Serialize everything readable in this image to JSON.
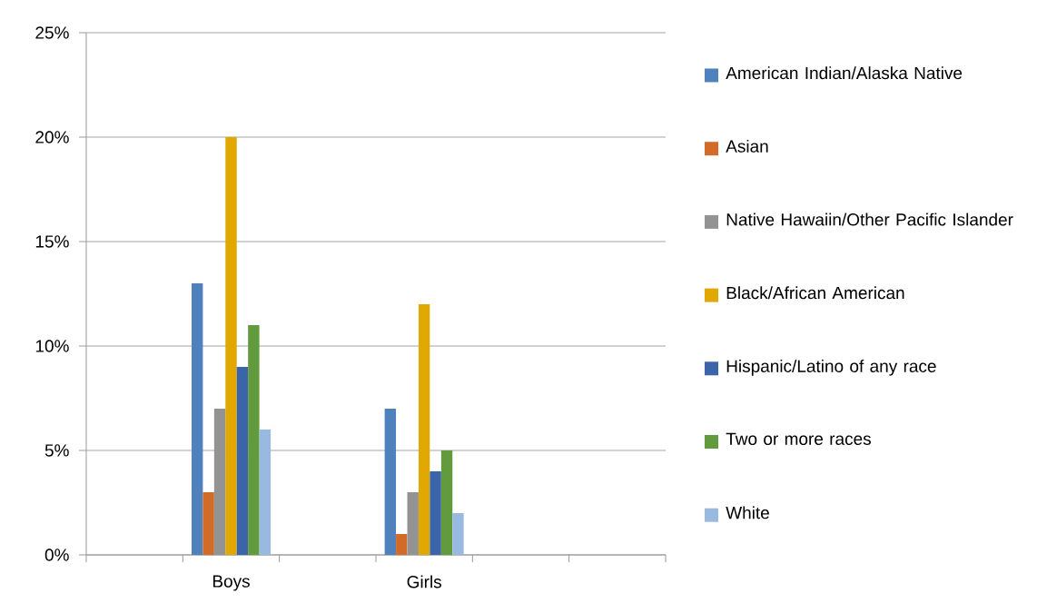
{
  "chart_data": {
    "type": "bar",
    "categories": [
      null,
      "Boys",
      null,
      "Girls",
      null,
      null
    ],
    "series": [
      {
        "name": "American Indian/Alaska Native",
        "color": "#4f81bd",
        "values": [
          null,
          13,
          null,
          7,
          null,
          null
        ]
      },
      {
        "name": "Asian",
        "color": "#d26b28",
        "values": [
          null,
          3,
          null,
          1,
          null,
          null
        ]
      },
      {
        "name": "Native Hawaiin/Other Pacific Islander",
        "color": "#939393",
        "values": [
          null,
          7,
          null,
          3,
          null,
          null
        ]
      },
      {
        "name": "Black/African American",
        "color": "#e0a800",
        "values": [
          null,
          20,
          null,
          12,
          null,
          null
        ]
      },
      {
        "name": "Hispanic/Latino of any race",
        "color": "#3c64a8",
        "values": [
          null,
          9,
          null,
          4,
          null,
          null
        ]
      },
      {
        "name": "Two or more races",
        "color": "#629a3e",
        "values": [
          null,
          11,
          null,
          5,
          null,
          null
        ]
      },
      {
        "name": "White",
        "color": "#98b9e0",
        "values": [
          null,
          6,
          null,
          2,
          null,
          null
        ]
      }
    ],
    "ylim": [
      0,
      25
    ],
    "yticks": [
      {
        "value": 0,
        "label": "0%"
      },
      {
        "value": 5,
        "label": "5%"
      },
      {
        "value": 10,
        "label": "10%"
      },
      {
        "value": 15,
        "label": "15%"
      },
      {
        "value": 20,
        "label": "20%"
      },
      {
        "value": 25,
        "label": "25%"
      }
    ],
    "grid": "y",
    "legend": "right"
  }
}
